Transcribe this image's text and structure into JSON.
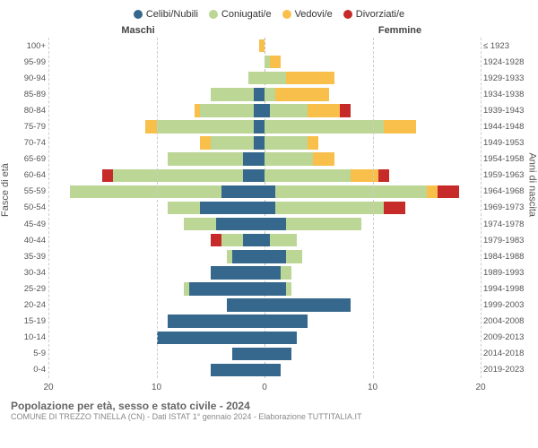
{
  "chart": {
    "type": "population-pyramid",
    "colors": {
      "celibi": "#36688d",
      "coniugati": "#bcd695",
      "vedovi": "#f9bf4b",
      "divorziati": "#c72b29",
      "grid": "#cccccc",
      "center": "#bbbbbb",
      "background": "#ffffff",
      "text": "#555555"
    },
    "legend": [
      {
        "key": "celibi",
        "label": "Celibi/Nubili"
      },
      {
        "key": "coniugati",
        "label": "Coniugati/e"
      },
      {
        "key": "vedovi",
        "label": "Vedovi/e"
      },
      {
        "key": "divorziati",
        "label": "Divorziati/e"
      }
    ],
    "column_headers": {
      "left": "Maschi",
      "right": "Femmine"
    },
    "axis_labels": {
      "left": "Fasce di età",
      "right": "Anni di nascita"
    },
    "x_axis": {
      "max": 20,
      "ticks": [
        20,
        10,
        0,
        10,
        20
      ]
    },
    "font_sizes": {
      "legend": 11,
      "headers": 11,
      "ticks": 9.5,
      "axis": 11,
      "footer_title": 12,
      "footer_sub": 9
    },
    "age_groups": [
      {
        "age": "100+",
        "years": "≤ 1923",
        "male": {
          "celibi": 0,
          "coniugati": 0,
          "vedovi": 0.5,
          "divorziati": 0
        },
        "female": {
          "celibi": 0,
          "coniugati": 0,
          "vedovi": 0,
          "divorziati": 0
        }
      },
      {
        "age": "95-99",
        "years": "1924-1928",
        "male": {
          "celibi": 0,
          "coniugati": 0,
          "vedovi": 0,
          "divorziati": 0
        },
        "female": {
          "celibi": 0,
          "coniugati": 0.5,
          "vedovi": 1,
          "divorziati": 0
        }
      },
      {
        "age": "90-94",
        "years": "1929-1933",
        "male": {
          "celibi": 0,
          "coniugati": 1.5,
          "vedovi": 0,
          "divorziati": 0
        },
        "female": {
          "celibi": 0,
          "coniugati": 2,
          "vedovi": 4.5,
          "divorziati": 0
        }
      },
      {
        "age": "85-89",
        "years": "1934-1938",
        "male": {
          "celibi": 1,
          "coniugati": 4,
          "vedovi": 0,
          "divorziati": 0
        },
        "female": {
          "celibi": 0,
          "coniugati": 1,
          "vedovi": 5,
          "divorziati": 0
        }
      },
      {
        "age": "80-84",
        "years": "1939-1943",
        "male": {
          "celibi": 1,
          "coniugati": 5,
          "vedovi": 0.5,
          "divorziati": 0
        },
        "female": {
          "celibi": 0.5,
          "coniugati": 3.5,
          "vedovi": 3,
          "divorziati": 1
        }
      },
      {
        "age": "75-79",
        "years": "1944-1948",
        "male": {
          "celibi": 1,
          "coniugati": 9,
          "vedovi": 1,
          "divorziati": 0
        },
        "female": {
          "celibi": 0,
          "coniugati": 11,
          "vedovi": 3,
          "divorziati": 0
        }
      },
      {
        "age": "70-74",
        "years": "1949-1953",
        "male": {
          "celibi": 1,
          "coniugati": 4,
          "vedovi": 1,
          "divorziati": 0
        },
        "female": {
          "celibi": 0,
          "coniugati": 4,
          "vedovi": 1,
          "divorziati": 0
        }
      },
      {
        "age": "65-69",
        "years": "1954-1958",
        "male": {
          "celibi": 2,
          "coniugati": 7,
          "vedovi": 0,
          "divorziati": 0
        },
        "female": {
          "celibi": 0,
          "coniugati": 4.5,
          "vedovi": 2,
          "divorziati": 0
        }
      },
      {
        "age": "60-64",
        "years": "1959-1963",
        "male": {
          "celibi": 2,
          "coniugati": 12,
          "vedovi": 0,
          "divorziati": 1
        },
        "female": {
          "celibi": 0,
          "coniugati": 8,
          "vedovi": 2.5,
          "divorziati": 1
        }
      },
      {
        "age": "55-59",
        "years": "1964-1968",
        "male": {
          "celibi": 4,
          "coniugati": 14,
          "vedovi": 0,
          "divorziati": 0
        },
        "female": {
          "celibi": 1,
          "coniugati": 14,
          "vedovi": 1,
          "divorziati": 2
        }
      },
      {
        "age": "50-54",
        "years": "1969-1973",
        "male": {
          "celibi": 6,
          "coniugati": 3,
          "vedovi": 0,
          "divorziati": 0
        },
        "female": {
          "celibi": 1,
          "coniugati": 10,
          "vedovi": 0,
          "divorziati": 2
        }
      },
      {
        "age": "45-49",
        "years": "1974-1978",
        "male": {
          "celibi": 4.5,
          "coniugati": 3,
          "vedovi": 0,
          "divorziati": 0
        },
        "female": {
          "celibi": 2,
          "coniugati": 7,
          "vedovi": 0,
          "divorziati": 0
        }
      },
      {
        "age": "40-44",
        "years": "1979-1983",
        "male": {
          "celibi": 2,
          "coniugati": 2,
          "vedovi": 0,
          "divorziati": 1
        },
        "female": {
          "celibi": 0.5,
          "coniugati": 2.5,
          "vedovi": 0,
          "divorziati": 0
        }
      },
      {
        "age": "35-39",
        "years": "1984-1988",
        "male": {
          "celibi": 3,
          "coniugati": 0.5,
          "vedovi": 0,
          "divorziati": 0
        },
        "female": {
          "celibi": 2,
          "coniugati": 1.5,
          "vedovi": 0,
          "divorziati": 0
        }
      },
      {
        "age": "30-34",
        "years": "1989-1993",
        "male": {
          "celibi": 5,
          "coniugati": 0,
          "vedovi": 0,
          "divorziati": 0
        },
        "female": {
          "celibi": 1.5,
          "coniugati": 1,
          "vedovi": 0,
          "divorziati": 0
        }
      },
      {
        "age": "25-29",
        "years": "1994-1998",
        "male": {
          "celibi": 7,
          "coniugati": 0.5,
          "vedovi": 0,
          "divorziati": 0
        },
        "female": {
          "celibi": 2,
          "coniugati": 0.5,
          "vedovi": 0,
          "divorziati": 0
        }
      },
      {
        "age": "20-24",
        "years": "1999-2003",
        "male": {
          "celibi": 3.5,
          "coniugati": 0,
          "vedovi": 0,
          "divorziati": 0
        },
        "female": {
          "celibi": 8,
          "coniugati": 0,
          "vedovi": 0,
          "divorziati": 0
        }
      },
      {
        "age": "15-19",
        "years": "2004-2008",
        "male": {
          "celibi": 9,
          "coniugati": 0,
          "vedovi": 0,
          "divorziati": 0
        },
        "female": {
          "celibi": 4,
          "coniugati": 0,
          "vedovi": 0,
          "divorziati": 0
        }
      },
      {
        "age": "10-14",
        "years": "2009-2013",
        "male": {
          "celibi": 10,
          "coniugati": 0,
          "vedovi": 0,
          "divorziati": 0
        },
        "female": {
          "celibi": 3,
          "coniugati": 0,
          "vedovi": 0,
          "divorziati": 0
        }
      },
      {
        "age": "5-9",
        "years": "2014-2018",
        "male": {
          "celibi": 3,
          "coniugati": 0,
          "vedovi": 0,
          "divorziati": 0
        },
        "female": {
          "celibi": 2.5,
          "coniugati": 0,
          "vedovi": 0,
          "divorziati": 0
        }
      },
      {
        "age": "0-4",
        "years": "2019-2023",
        "male": {
          "celibi": 5,
          "coniugati": 0,
          "vedovi": 0,
          "divorziati": 0
        },
        "female": {
          "celibi": 1.5,
          "coniugati": 0,
          "vedovi": 0,
          "divorziati": 0
        }
      }
    ],
    "footer": {
      "title": "Popolazione per età, sesso e stato civile - 2024",
      "subtitle": "COMUNE DI TREZZO TINELLA (CN) - Dati ISTAT 1° gennaio 2024 - Elaborazione TUTTITALIA.IT"
    }
  }
}
